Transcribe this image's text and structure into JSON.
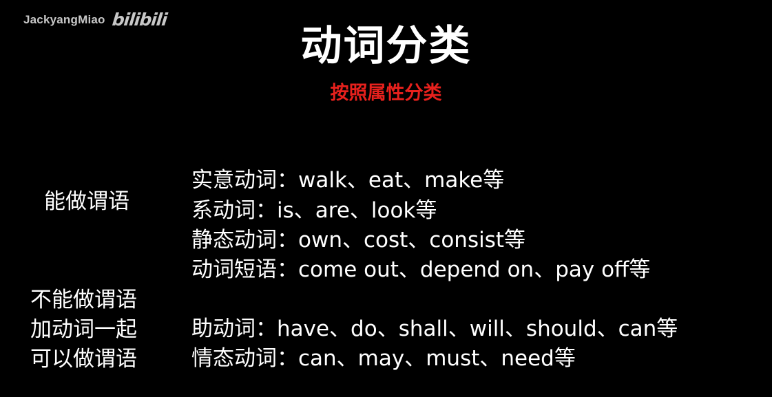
{
  "watermark": {
    "user": "JackyangMiao",
    "brand": "bilibili"
  },
  "title": "动词分类",
  "subtitle": "按照属性分类",
  "categories": [
    {
      "label": "能做谓语",
      "lines": [
        "能做谓语"
      ]
    },
    {
      "label": "不能做谓语加动词一起可以做谓语",
      "lines": [
        "不能做谓语",
        "加动词一起",
        "可以做谓语"
      ]
    }
  ],
  "items": [
    "实意动词：walk、eat、make等",
    "系动词：is、are、look等",
    "静态动词：own、cost、consist等",
    "动词短语：come out、depend on、pay off等",
    "助动词：have、do、shall、will、should、can等",
    "情态动词：can、may、must、need等"
  ],
  "colors": {
    "background": "#000000",
    "text": "#ffffff",
    "subtitle": "#e8211d"
  }
}
